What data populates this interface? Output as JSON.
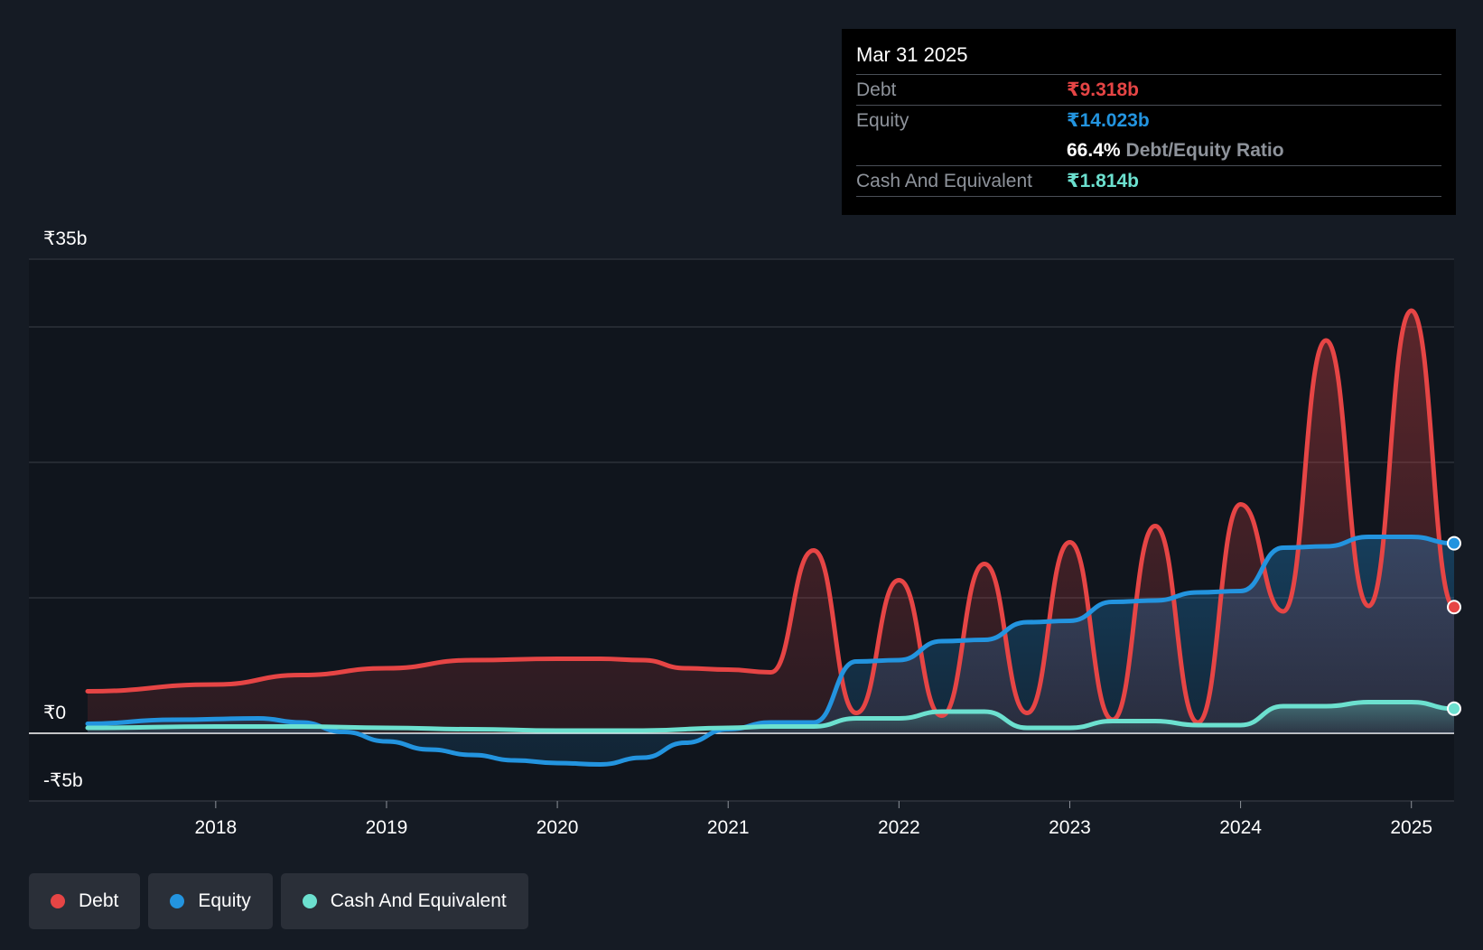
{
  "colors": {
    "background": "#151b24",
    "debt": "#e64545",
    "equity": "#2394df",
    "cash": "#6ce0cf"
  },
  "tooltip": {
    "date": "Mar 31 2025",
    "debt_label": "Debt",
    "debt_value": "₹9.318b",
    "equity_label": "Equity",
    "equity_value": "₹14.023b",
    "ratio_value": "66.4%",
    "ratio_label": "Debt/Equity Ratio",
    "cash_label": "Cash And Equivalent",
    "cash_value": "₹1.814b"
  },
  "legend": {
    "items": [
      {
        "label": "Debt",
        "color": "#e64545"
      },
      {
        "label": "Equity",
        "color": "#2394df"
      },
      {
        "label": "Cash And Equivalent",
        "color": "#6ce0cf"
      }
    ]
  },
  "chart_data": {
    "type": "area",
    "y_unit": "₹ billions",
    "ylim": [
      -5,
      35
    ],
    "xlim": [
      2017.25,
      2025.25
    ],
    "y_tick_labels": [
      {
        "value": 35,
        "label": "₹35b"
      },
      {
        "value": 0,
        "label": "₹0"
      },
      {
        "value": -5,
        "label": "-₹5b"
      }
    ],
    "y_gridlines": [
      35,
      30,
      20,
      10,
      0,
      -5
    ],
    "x_ticks": [
      {
        "value": 2018,
        "label": "2018"
      },
      {
        "value": 2019,
        "label": "2019"
      },
      {
        "value": 2020,
        "label": "2020"
      },
      {
        "value": 2021,
        "label": "2021"
      },
      {
        "value": 2022,
        "label": "2022"
      },
      {
        "value": 2023,
        "label": "2023"
      },
      {
        "value": 2024,
        "label": "2024"
      },
      {
        "value": 2025,
        "label": "2025"
      }
    ],
    "grid": true,
    "legend_position": "bottom-left",
    "series": [
      {
        "name": "Debt",
        "color": "#e64545",
        "points": [
          [
            2017.25,
            3.1
          ],
          [
            2018.0,
            3.6
          ],
          [
            2018.5,
            4.3
          ],
          [
            2019.0,
            4.8
          ],
          [
            2019.5,
            5.4
          ],
          [
            2020.0,
            5.5
          ],
          [
            2020.25,
            5.5
          ],
          [
            2020.5,
            5.4
          ],
          [
            2020.75,
            4.8
          ],
          [
            2021.0,
            4.7
          ],
          [
            2021.25,
            4.5
          ],
          [
            2021.5,
            13.5
          ],
          [
            2021.75,
            1.5
          ],
          [
            2022.0,
            11.3
          ],
          [
            2022.25,
            1.3
          ],
          [
            2022.5,
            12.5
          ],
          [
            2022.75,
            1.5
          ],
          [
            2023.0,
            14.1
          ],
          [
            2023.25,
            1.0
          ],
          [
            2023.5,
            15.3
          ],
          [
            2023.75,
            0.8
          ],
          [
            2024.0,
            16.9
          ],
          [
            2024.25,
            9.0
          ],
          [
            2024.5,
            29.0
          ],
          [
            2024.75,
            9.4
          ],
          [
            2025.0,
            31.2
          ],
          [
            2025.25,
            9.318
          ]
        ]
      },
      {
        "name": "Equity",
        "color": "#2394df",
        "points": [
          [
            2017.25,
            0.7
          ],
          [
            2017.75,
            1.0
          ],
          [
            2018.25,
            1.1
          ],
          [
            2018.5,
            0.8
          ],
          [
            2018.75,
            0.1
          ],
          [
            2019.0,
            -0.6
          ],
          [
            2019.25,
            -1.2
          ],
          [
            2019.5,
            -1.6
          ],
          [
            2019.75,
            -2.0
          ],
          [
            2020.0,
            -2.2
          ],
          [
            2020.25,
            -2.3
          ],
          [
            2020.5,
            -1.8
          ],
          [
            2020.75,
            -0.7
          ],
          [
            2021.0,
            0.3
          ],
          [
            2021.25,
            0.8
          ],
          [
            2021.5,
            0.8
          ],
          [
            2021.75,
            5.3
          ],
          [
            2022.0,
            5.4
          ],
          [
            2022.25,
            6.8
          ],
          [
            2022.5,
            6.9
          ],
          [
            2022.75,
            8.2
          ],
          [
            2023.0,
            8.3
          ],
          [
            2023.25,
            9.7
          ],
          [
            2023.5,
            9.8
          ],
          [
            2023.75,
            10.4
          ],
          [
            2024.0,
            10.5
          ],
          [
            2024.25,
            13.7
          ],
          [
            2024.5,
            13.8
          ],
          [
            2024.75,
            14.5
          ],
          [
            2025.0,
            14.5
          ],
          [
            2025.25,
            14.023
          ]
        ]
      },
      {
        "name": "Cash And Equivalent",
        "color": "#6ce0cf",
        "points": [
          [
            2017.25,
            0.4
          ],
          [
            2018.0,
            0.5
          ],
          [
            2018.5,
            0.5
          ],
          [
            2019.0,
            0.4
          ],
          [
            2019.5,
            0.3
          ],
          [
            2020.0,
            0.2
          ],
          [
            2020.5,
            0.2
          ],
          [
            2021.0,
            0.4
          ],
          [
            2021.25,
            0.5
          ],
          [
            2021.5,
            0.5
          ],
          [
            2021.75,
            1.1
          ],
          [
            2022.0,
            1.1
          ],
          [
            2022.25,
            1.6
          ],
          [
            2022.5,
            1.6
          ],
          [
            2022.75,
            0.4
          ],
          [
            2023.0,
            0.4
          ],
          [
            2023.25,
            0.9
          ],
          [
            2023.5,
            0.9
          ],
          [
            2023.75,
            0.6
          ],
          [
            2024.0,
            0.6
          ],
          [
            2024.25,
            2.0
          ],
          [
            2024.5,
            2.0
          ],
          [
            2024.75,
            2.3
          ],
          [
            2025.0,
            2.3
          ],
          [
            2025.25,
            1.814
          ]
        ]
      }
    ]
  }
}
